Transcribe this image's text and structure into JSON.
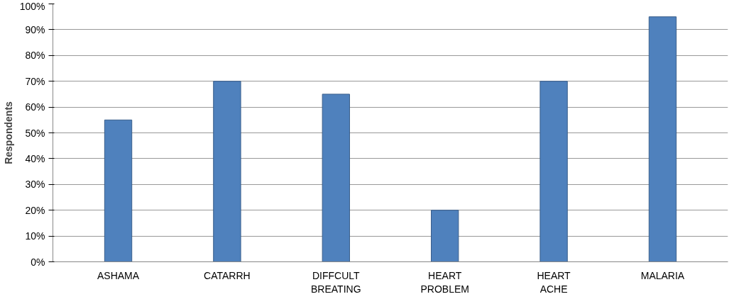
{
  "chart_data": {
    "type": "bar",
    "ylabel": "Respondents",
    "categories": [
      "ASHAMA",
      "CATARRH",
      "DIFFCULT\nBREATING",
      "HEART\nPROBLEM",
      "HEART\nACHE",
      "MALARIA"
    ],
    "values": [
      55,
      70,
      65,
      20,
      70,
      95
    ],
    "color": "#4f81bd",
    "ylim": [
      0,
      100
    ],
    "yticks": [
      {
        "value": 0,
        "label": "0%"
      },
      {
        "value": 10,
        "label": "10%"
      },
      {
        "value": 20,
        "label": "20%"
      },
      {
        "value": 30,
        "label": "30%"
      },
      {
        "value": 40,
        "label": "40%"
      },
      {
        "value": 50,
        "label": "50%"
      },
      {
        "value": 60,
        "label": "60%"
      },
      {
        "value": 70,
        "label": "70%"
      },
      {
        "value": 80,
        "label": "80%"
      },
      {
        "value": 90,
        "label": "90%"
      },
      {
        "value": 100,
        "label": "100%"
      }
    ],
    "grid": "y"
  }
}
